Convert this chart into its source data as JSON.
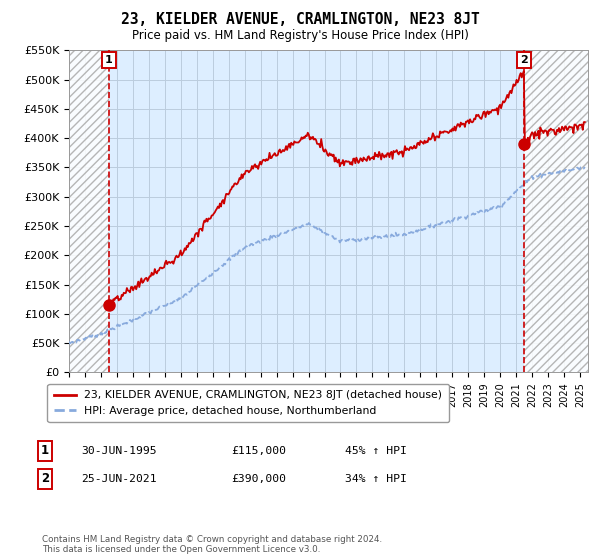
{
  "title": "23, KIELDER AVENUE, CRAMLINGTON, NE23 8JT",
  "subtitle": "Price paid vs. HM Land Registry's House Price Index (HPI)",
  "ylim": [
    0,
    550000
  ],
  "yticks": [
    0,
    50000,
    100000,
    150000,
    200000,
    250000,
    300000,
    350000,
    400000,
    450000,
    500000,
    550000
  ],
  "ytick_labels": [
    "£0",
    "£50K",
    "£100K",
    "£150K",
    "£200K",
    "£250K",
    "£300K",
    "£350K",
    "£400K",
    "£450K",
    "£500K",
    "£550K"
  ],
  "xlim_start": 1993.0,
  "xlim_end": 2025.5,
  "sale1_date": 1995.5,
  "sale1_price": 115000,
  "sale1_label": "1",
  "sale1_info": "30-JUN-1995",
  "sale1_price_str": "£115,000",
  "sale1_hpi": "45% ↑ HPI",
  "sale2_date": 2021.5,
  "sale2_price": 390000,
  "sale2_label": "2",
  "sale2_info": "25-JUN-2021",
  "sale2_price_str": "£390,000",
  "sale2_hpi": "34% ↑ HPI",
  "red_line_color": "#cc0000",
  "blue_line_color": "#88aadd",
  "bg_plot_color": "#ddeeff",
  "grid_color": "#bbccdd",
  "legend_line1": "23, KIELDER AVENUE, CRAMLINGTON, NE23 8JT (detached house)",
  "legend_line2": "HPI: Average price, detached house, Northumberland",
  "footer": "Contains HM Land Registry data © Crown copyright and database right 2024.\nThis data is licensed under the Open Government Licence v3.0."
}
